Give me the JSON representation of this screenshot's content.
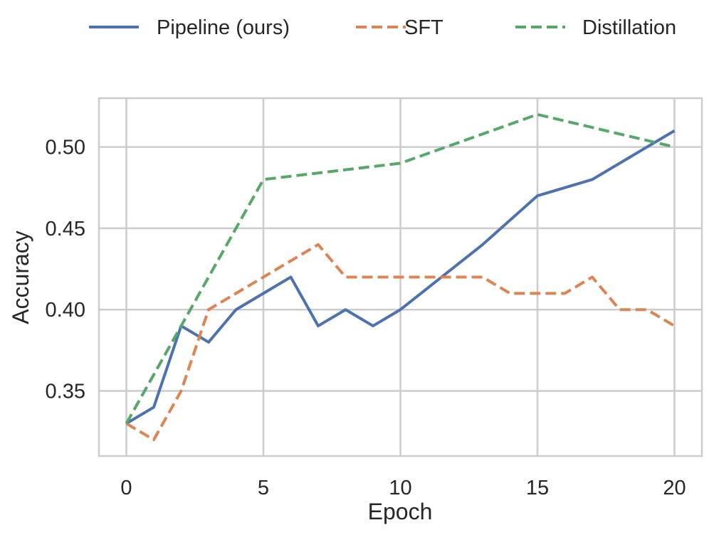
{
  "chart_data": {
    "type": "line",
    "title": "",
    "xlabel": "Epoch",
    "ylabel": "Accuracy",
    "xlim": [
      -1,
      21
    ],
    "ylim": [
      0.31,
      0.53
    ],
    "xticks": [
      0,
      5,
      10,
      15,
      20
    ],
    "yticks": [
      0.35,
      0.4,
      0.45,
      0.5
    ],
    "xtick_labels": [
      "0",
      "5",
      "10",
      "15",
      "20"
    ],
    "ytick_labels": [
      "0.35",
      "0.40",
      "0.45",
      "0.50"
    ],
    "grid": true,
    "legend_placement": "top-center, outside",
    "series": [
      {
        "name": "Pipeline (ours)",
        "color": "#4c72b0",
        "style": "solid",
        "x": [
          0,
          1,
          2,
          3,
          4,
          5,
          6,
          7,
          8,
          9,
          10,
          13,
          15,
          17,
          20
        ],
        "y": [
          0.33,
          0.34,
          0.39,
          0.38,
          0.4,
          0.41,
          0.42,
          0.39,
          0.4,
          0.39,
          0.4,
          0.44,
          0.47,
          0.48,
          0.51
        ]
      },
      {
        "name": "SFT",
        "color": "#dd8452",
        "style": "dashed",
        "x": [
          0,
          1,
          2,
          3,
          4,
          5,
          6,
          7,
          8,
          9,
          10,
          11,
          12,
          13,
          14,
          15,
          16,
          17,
          18,
          19,
          20
        ],
        "y": [
          0.33,
          0.32,
          0.35,
          0.4,
          0.41,
          0.42,
          0.43,
          0.44,
          0.42,
          0.42,
          0.42,
          0.42,
          0.42,
          0.42,
          0.41,
          0.41,
          0.41,
          0.42,
          0.4,
          0.4,
          0.39
        ]
      },
      {
        "name": "Distillation",
        "color": "#55a868",
        "style": "dashed",
        "x": [
          0,
          5,
          10,
          15,
          20
        ],
        "y": [
          0.33,
          0.48,
          0.49,
          0.52,
          0.5
        ]
      }
    ]
  }
}
